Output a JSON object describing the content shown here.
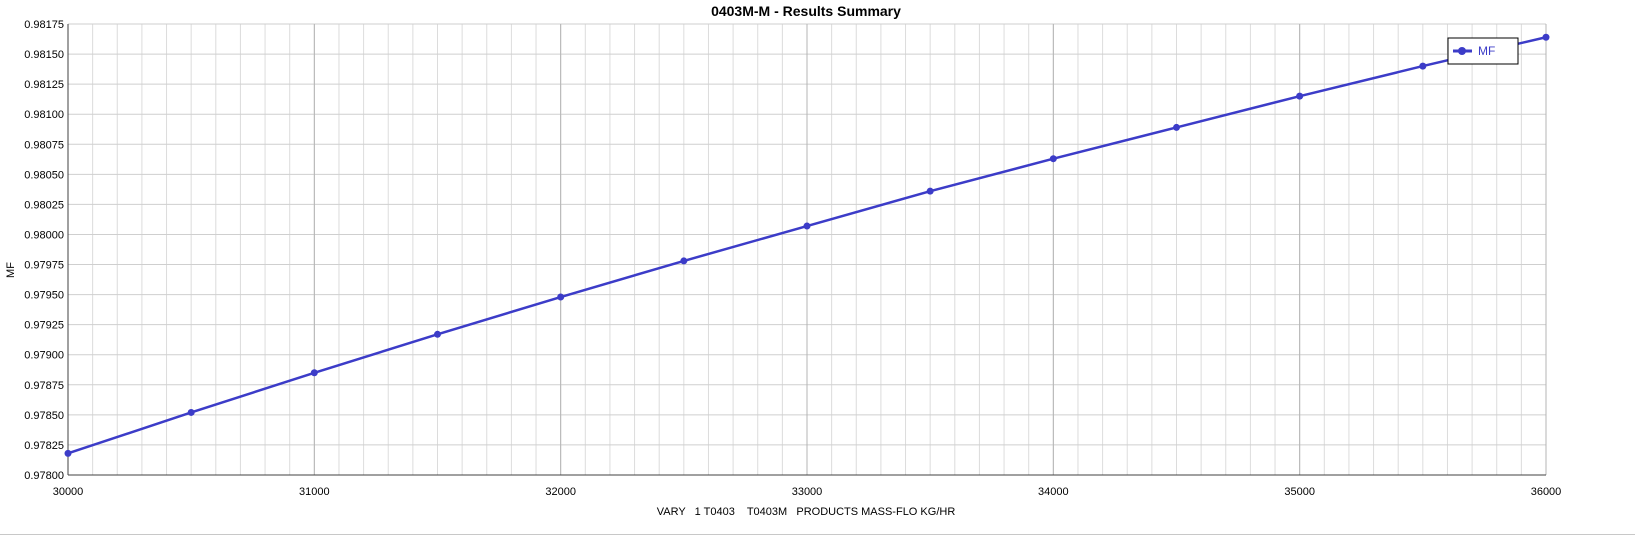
{
  "chart_data": {
    "type": "line",
    "title": "0403M-M - Results Summary",
    "xlabel": "VARY   1 T0403    T0403M   PRODUCTS MASS-FLO KG/HR",
    "ylabel": "MF",
    "xlim": [
      30000,
      36000
    ],
    "ylim": [
      0.978,
      0.98175
    ],
    "x_ticks": [
      30000,
      31000,
      32000,
      33000,
      34000,
      35000,
      36000
    ],
    "x_tick_labels": [
      "30000",
      "31000",
      "32000",
      "33000",
      "34000",
      "35000",
      "36000"
    ],
    "y_ticks": [
      0.978,
      0.97825,
      0.9785,
      0.97875,
      0.979,
      0.97925,
      0.9795,
      0.97975,
      0.98,
      0.98025,
      0.9805,
      0.98075,
      0.981,
      0.98125,
      0.9815,
      0.98175
    ],
    "y_tick_labels": [
      "0.97800",
      "0.97825",
      "0.97850",
      "0.97875",
      "0.97900",
      "0.97925",
      "0.97950",
      "0.97975",
      "0.98000",
      "0.98025",
      "0.98050",
      "0.98075",
      "0.98100",
      "0.98125",
      "0.98150",
      "0.98175"
    ],
    "grid": true,
    "legend_position": "top-right",
    "series": [
      {
        "name": "MF",
        "color": "#3c3cc8",
        "x": [
          30000,
          30500,
          31000,
          31500,
          32000,
          32500,
          33000,
          33500,
          34000,
          34500,
          35000,
          35500,
          36000
        ],
        "y": [
          0.97818,
          0.97852,
          0.97885,
          0.97917,
          0.97948,
          0.97978,
          0.98007,
          0.98036,
          0.98063,
          0.98089,
          0.98115,
          0.9814,
          0.98164
        ]
      }
    ]
  }
}
